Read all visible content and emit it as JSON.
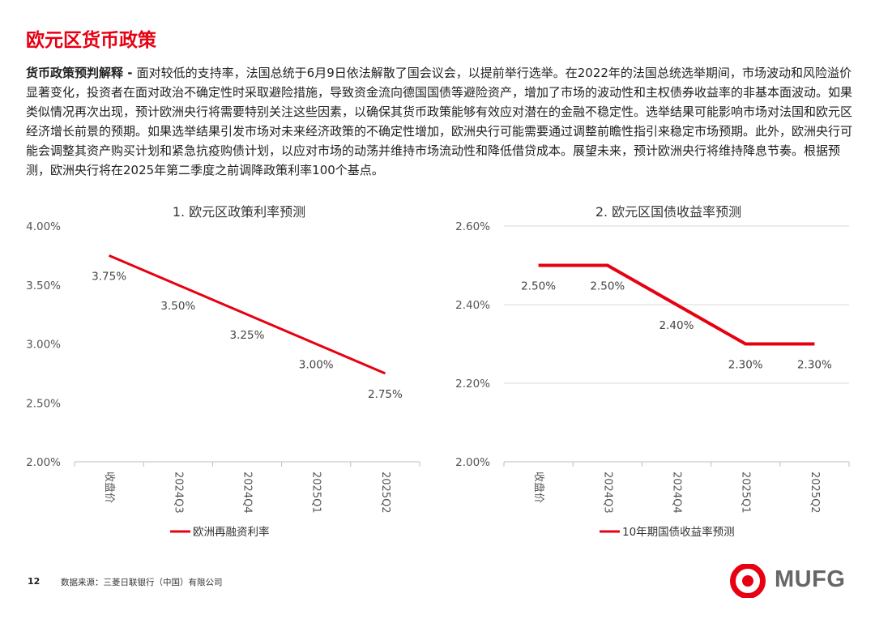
{
  "page": {
    "title": "欧元区货币政策",
    "intro_lead": "货币政策预判解释 - ",
    "intro_body": "面对较低的支持率，法国总统于6月9日依法解散了国会议会，以提前举行选举。在2022年的法国总统选举期间，市场波动和风险溢价显著变化，投资者在面对政治不确定性时采取避险措施，导致资金流向德国国债等避险资产，增加了市场的波动性和主权债券收益率的非基本面波动。如果类似情况再次出现，预计欧洲央行将需要特别关注这些因素，以确保其货币政策能够有效应对潜在的金融不稳定性。选举结果可能影响市场对法国和欧元区经济增长前景的预期。如果选举结果引发市场对未来经济政策的不确定性增加，欧洲央行可能需要通过调整前瞻性指引来稳定市场预期。此外，欧洲央行可能会调整其资产购买计划和紧急抗疫购债计划，以应对市场的动荡并维持市场流动性和降低借贷成本。展望未来，预计欧洲央行将维持降息节奏。根据预测，欧洲央行将在2025年第二季度之前调降政策利率100个基点。"
  },
  "footer": {
    "page_number": "12",
    "source": "数据来源：三菱日联银行（中国）有限公司",
    "logo_text": "MUFG",
    "logo_color": "#e60012"
  },
  "chart_data": [
    {
      "type": "line",
      "title": "1. 欧元区政策利率预测",
      "categories": [
        "收盘价",
        "2024Q3",
        "2024Q4",
        "2025Q1",
        "2025Q2"
      ],
      "series": [
        {
          "name": "欧洲再融资利率",
          "values": [
            3.75,
            3.5,
            3.25,
            3.0,
            2.75
          ],
          "labels": [
            "3.75%",
            "3.50%",
            "3.25%",
            "3.00%",
            "2.75%"
          ],
          "color": "#e60012"
        }
      ],
      "ylim": [
        2.0,
        4.0
      ],
      "yticks": [
        2.0,
        2.5,
        3.0,
        3.5,
        4.0
      ],
      "ytick_labels": [
        "2.00%",
        "2.50%",
        "3.00%",
        "3.50%",
        "4.00%"
      ],
      "grid": false,
      "legend": "bottom-left"
    },
    {
      "type": "line",
      "title": "2. 欧元区国债收益率预测",
      "categories": [
        "收盘价",
        "2024Q3",
        "2024Q4",
        "2025Q1",
        "2025Q2"
      ],
      "series": [
        {
          "name": "10年期国债收益率预测",
          "values": [
            2.5,
            2.5,
            2.4,
            2.3,
            2.3
          ],
          "labels": [
            "2.50%",
            "2.50%",
            "2.40%",
            "2.30%",
            "2.30%"
          ],
          "color": "#e60012"
        }
      ],
      "ylim": [
        2.0,
        2.6
      ],
      "yticks": [
        2.0,
        2.2,
        2.4,
        2.6
      ],
      "ytick_labels": [
        "2.00%",
        "2.20%",
        "2.40%",
        "2.60%"
      ],
      "grid": true,
      "legend": "bottom-left"
    }
  ]
}
